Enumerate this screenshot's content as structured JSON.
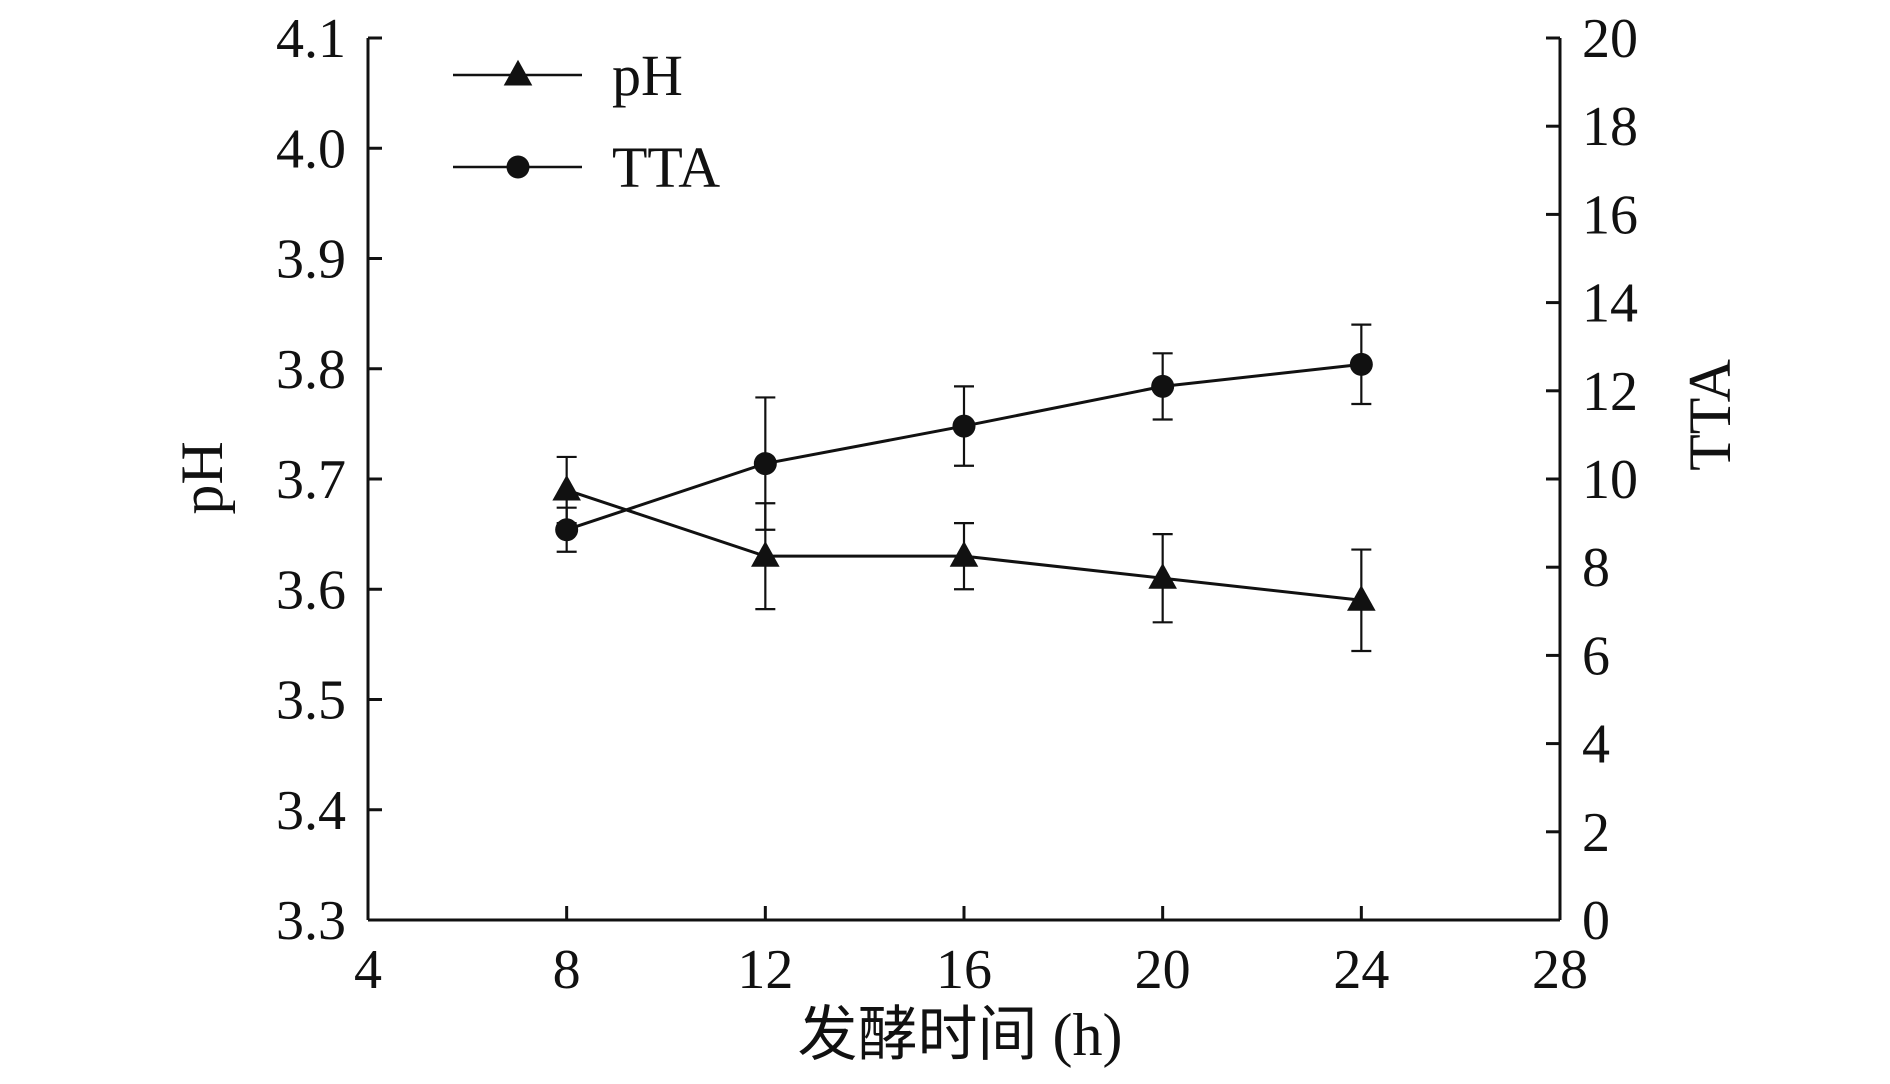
{
  "chart_data": {
    "type": "line",
    "title": "",
    "xlabel": "发酵时间 (h)",
    "ylabel": "pH",
    "y2label": "TTA",
    "xlim": [
      4,
      28
    ],
    "ylim": [
      3.3,
      4.1
    ],
    "y2lim": [
      0,
      20
    ],
    "xticks": [
      "4",
      "8",
      "12",
      "16",
      "20",
      "24",
      "28"
    ],
    "yticks": [
      "3.3",
      "3.4",
      "3.5",
      "3.6",
      "3.7",
      "3.8",
      "3.9",
      "4.0",
      "4.1"
    ],
    "y2ticks": [
      "0",
      "2",
      "4",
      "6",
      "8",
      "10",
      "12",
      "14",
      "16",
      "18",
      "20"
    ],
    "x": [
      8,
      12,
      16,
      20,
      24
    ],
    "series": [
      {
        "name": "pH",
        "axis": "left",
        "marker": "triangle",
        "values": [
          3.69,
          3.63,
          3.63,
          3.61,
          3.59
        ],
        "errors": [
          0.03,
          0.048,
          0.03,
          0.04,
          0.046
        ]
      },
      {
        "name": "TTA",
        "axis": "right",
        "marker": "circle",
        "values": [
          8.85,
          10.35,
          11.2,
          12.1,
          12.6
        ],
        "errors": [
          0.5,
          1.5,
          0.9,
          0.75,
          0.9
        ]
      }
    ],
    "legend": {
      "position": "top-left"
    },
    "grid": false,
    "colors": {
      "line": "#111111",
      "marker": "#111111"
    }
  }
}
